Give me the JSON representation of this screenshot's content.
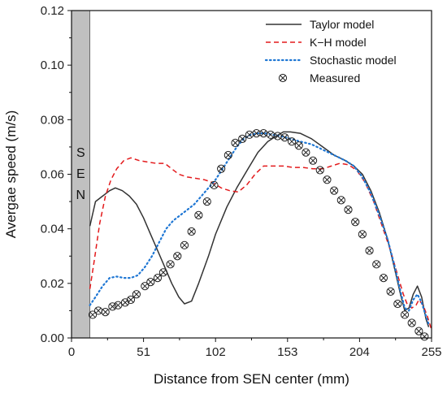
{
  "chart_data": {
    "type": "line",
    "title": "",
    "xlabel": "Distance from SEN center (mm)",
    "ylabel": "Avergae speed (m/s)",
    "xlim": [
      0,
      255
    ],
    "ylim": [
      0,
      0.12
    ],
    "x_ticks": [
      "0",
      "51",
      "102",
      "153",
      "204",
      "255"
    ],
    "y_ticks": [
      "0.00",
      "0.02",
      "0.04",
      "0.06",
      "0.08",
      "0.10",
      "0.12"
    ],
    "grid": false,
    "legend_position": "top-right",
    "annotation": {
      "text": "SEN",
      "region": [
        0,
        13
      ]
    },
    "series": [
      {
        "name": "Taylor model",
        "style": "solid",
        "color": "#333333",
        "points": [
          [
            13,
            0.041
          ],
          [
            17,
            0.05
          ],
          [
            22,
            0.052
          ],
          [
            27,
            0.054
          ],
          [
            31,
            0.055
          ],
          [
            36,
            0.054
          ],
          [
            41,
            0.052
          ],
          [
            46,
            0.049
          ],
          [
            51,
            0.044
          ],
          [
            56,
            0.038
          ],
          [
            61,
            0.032
          ],
          [
            66,
            0.026
          ],
          [
            71,
            0.02
          ],
          [
            76,
            0.015
          ],
          [
            80,
            0.0125
          ],
          [
            85,
            0.0135
          ],
          [
            90,
            0.02
          ],
          [
            97,
            0.03
          ],
          [
            102,
            0.038
          ],
          [
            110,
            0.048
          ],
          [
            117,
            0.055
          ],
          [
            125,
            0.062
          ],
          [
            132,
            0.068
          ],
          [
            139,
            0.072
          ],
          [
            145,
            0.074
          ],
          [
            150,
            0.0755
          ],
          [
            155,
            0.0755
          ],
          [
            162,
            0.075
          ],
          [
            170,
            0.073
          ],
          [
            178,
            0.07
          ],
          [
            186,
            0.067
          ],
          [
            194,
            0.065
          ],
          [
            200,
            0.063
          ],
          [
            206,
            0.06
          ],
          [
            212,
            0.054
          ],
          [
            218,
            0.046
          ],
          [
            224,
            0.036
          ],
          [
            229,
            0.025
          ],
          [
            233,
            0.016
          ],
          [
            236,
            0.01
          ],
          [
            239,
            0.011
          ],
          [
            242,
            0.016
          ],
          [
            245,
            0.019
          ],
          [
            248,
            0.015
          ],
          [
            251,
            0.007
          ],
          [
            253,
            0.004
          ]
        ]
      },
      {
        "name": "K−H model",
        "style": "dashed",
        "color": "#e31a1c",
        "points": [
          [
            13,
            0.018
          ],
          [
            16,
            0.028
          ],
          [
            20,
            0.042
          ],
          [
            24,
            0.052
          ],
          [
            28,
            0.058
          ],
          [
            32,
            0.062
          ],
          [
            37,
            0.065
          ],
          [
            42,
            0.066
          ],
          [
            48,
            0.065
          ],
          [
            54,
            0.0645
          ],
          [
            60,
            0.064
          ],
          [
            66,
            0.064
          ],
          [
            71,
            0.062
          ],
          [
            76,
            0.06
          ],
          [
            82,
            0.059
          ],
          [
            88,
            0.0585
          ],
          [
            94,
            0.058
          ],
          [
            100,
            0.057
          ],
          [
            106,
            0.055
          ],
          [
            112,
            0.054
          ],
          [
            118,
            0.0535
          ],
          [
            124,
            0.056
          ],
          [
            130,
            0.06
          ],
          [
            136,
            0.063
          ],
          [
            143,
            0.063
          ],
          [
            150,
            0.063
          ],
          [
            157,
            0.0625
          ],
          [
            164,
            0.0625
          ],
          [
            171,
            0.062
          ],
          [
            178,
            0.062
          ],
          [
            184,
            0.063
          ],
          [
            190,
            0.064
          ],
          [
            196,
            0.0635
          ],
          [
            202,
            0.0615
          ],
          [
            208,
            0.057
          ],
          [
            214,
            0.05
          ],
          [
            220,
            0.041
          ],
          [
            226,
            0.032
          ],
          [
            231,
            0.023
          ],
          [
            235,
            0.016
          ],
          [
            238,
            0.012
          ],
          [
            241,
            0.011
          ],
          [
            244,
            0.012
          ],
          [
            246,
            0.014
          ],
          [
            249,
            0.012
          ],
          [
            252,
            0.008
          ],
          [
            255,
            0.003
          ]
        ]
      },
      {
        "name": "Stochastic model",
        "style": "dotted",
        "color": "#1f77d4",
        "points": [
          [
            13,
            0.012
          ],
          [
            17,
            0.015
          ],
          [
            22,
            0.019
          ],
          [
            27,
            0.022
          ],
          [
            32,
            0.0225
          ],
          [
            37,
            0.022
          ],
          [
            42,
            0.022
          ],
          [
            47,
            0.023
          ],
          [
            52,
            0.026
          ],
          [
            57,
            0.03
          ],
          [
            62,
            0.035
          ],
          [
            67,
            0.04
          ],
          [
            72,
            0.043
          ],
          [
            77,
            0.045
          ],
          [
            82,
            0.047
          ],
          [
            87,
            0.049
          ],
          [
            92,
            0.052
          ],
          [
            97,
            0.055
          ],
          [
            102,
            0.058
          ],
          [
            107,
            0.062
          ],
          [
            112,
            0.066
          ],
          [
            117,
            0.07
          ],
          [
            122,
            0.073
          ],
          [
            127,
            0.0745
          ],
          [
            132,
            0.075
          ],
          [
            137,
            0.075
          ],
          [
            142,
            0.0745
          ],
          [
            148,
            0.074
          ],
          [
            155,
            0.073
          ],
          [
            162,
            0.072
          ],
          [
            170,
            0.071
          ],
          [
            178,
            0.069
          ],
          [
            186,
            0.067
          ],
          [
            194,
            0.065
          ],
          [
            200,
            0.063
          ],
          [
            206,
            0.059
          ],
          [
            212,
            0.053
          ],
          [
            218,
            0.045
          ],
          [
            224,
            0.036
          ],
          [
            229,
            0.026
          ],
          [
            233,
            0.017
          ],
          [
            236,
            0.011
          ],
          [
            239,
            0.01
          ],
          [
            242,
            0.014
          ],
          [
            245,
            0.016
          ],
          [
            248,
            0.013
          ],
          [
            251,
            0.008
          ],
          [
            253,
            0.005
          ]
        ]
      },
      {
        "name": "Measured",
        "style": "markers",
        "color": "#222222",
        "points": [
          [
            15,
            0.0085
          ],
          [
            19,
            0.01
          ],
          [
            24,
            0.0095
          ],
          [
            29,
            0.0115
          ],
          [
            33,
            0.012
          ],
          [
            38,
            0.013
          ],
          [
            42,
            0.014
          ],
          [
            46,
            0.016
          ],
          [
            52,
            0.019
          ],
          [
            56,
            0.0205
          ],
          [
            61,
            0.022
          ],
          [
            65,
            0.024
          ],
          [
            70,
            0.027
          ],
          [
            75,
            0.03
          ],
          [
            80,
            0.034
          ],
          [
            85,
            0.039
          ],
          [
            90,
            0.045
          ],
          [
            96,
            0.05
          ],
          [
            101,
            0.056
          ],
          [
            106,
            0.062
          ],
          [
            111,
            0.067
          ],
          [
            116,
            0.0715
          ],
          [
            121,
            0.073
          ],
          [
            126,
            0.0745
          ],
          [
            131,
            0.075
          ],
          [
            136,
            0.075
          ],
          [
            141,
            0.0745
          ],
          [
            146,
            0.074
          ],
          [
            151,
            0.0735
          ],
          [
            156,
            0.072
          ],
          [
            161,
            0.0705
          ],
          [
            166,
            0.068
          ],
          [
            171,
            0.065
          ],
          [
            176,
            0.0615
          ],
          [
            181,
            0.058
          ],
          [
            186,
            0.054
          ],
          [
            191,
            0.0505
          ],
          [
            196,
            0.047
          ],
          [
            201,
            0.0425
          ],
          [
            206,
            0.038
          ],
          [
            211,
            0.032
          ],
          [
            216,
            0.027
          ],
          [
            221,
            0.022
          ],
          [
            226,
            0.017
          ],
          [
            231,
            0.0125
          ],
          [
            236,
            0.0085
          ],
          [
            241,
            0.0055
          ],
          [
            246,
            0.0025
          ],
          [
            250,
            0.0005
          ]
        ]
      }
    ]
  }
}
